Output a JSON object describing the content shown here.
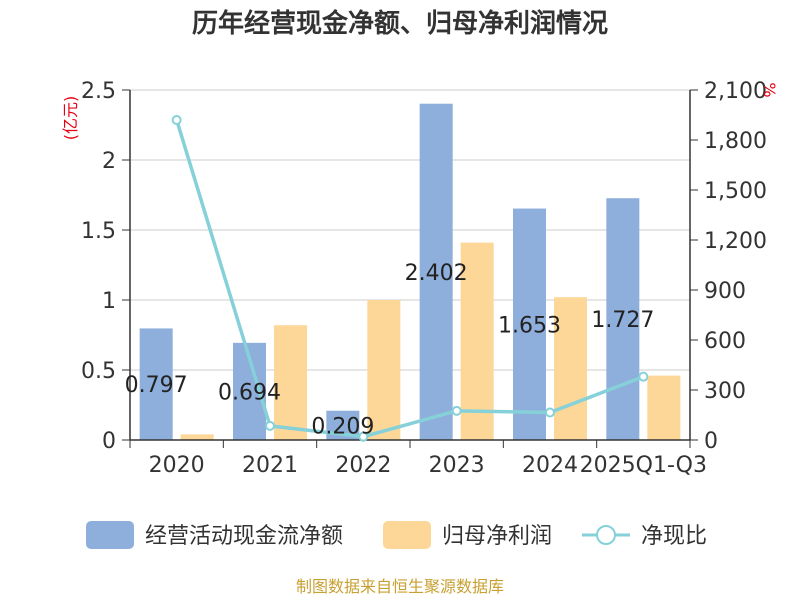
{
  "chart_data": {
    "type": "bar",
    "title": "历年经营现金净额、归母净利润情况",
    "categories": [
      "2020",
      "2021",
      "2022",
      "2023",
      "2024",
      "2025Q1-Q3"
    ],
    "y_left_unit": "(亿元)",
    "y_right_unit": "%",
    "y_left_range": [
      0,
      2.5
    ],
    "y_left_ticks": [
      "0",
      "0.5",
      "1",
      "1.5",
      "2",
      "2.5"
    ],
    "y_right_range": [
      0,
      2100
    ],
    "y_right_ticks": [
      "0",
      "300",
      "600",
      "900",
      "1,200",
      "1,500",
      "1,800",
      "2,100"
    ],
    "series": [
      {
        "name": "经营活动现金流净额",
        "kind": "bar",
        "axis": "left",
        "color": "#8eaedb",
        "values": [
          0.797,
          0.694,
          0.209,
          2.402,
          1.653,
          1.727
        ],
        "labels": [
          "0.797",
          "0.694",
          "0.209",
          "2.402",
          "1.653",
          "1.727"
        ]
      },
      {
        "name": "归母净利润",
        "kind": "bar",
        "axis": "left",
        "color": "#fdd797",
        "values": [
          0.04,
          0.82,
          1.0,
          1.41,
          1.02,
          0.46
        ]
      },
      {
        "name": "净现比",
        "kind": "line",
        "axis": "right",
        "color": "#86d1d9",
        "values": [
          1920,
          85,
          20,
          175,
          165,
          380
        ]
      }
    ],
    "legend_position": "bottom",
    "grid": true
  },
  "source_note": "制图数据来自恒生聚源数据库"
}
